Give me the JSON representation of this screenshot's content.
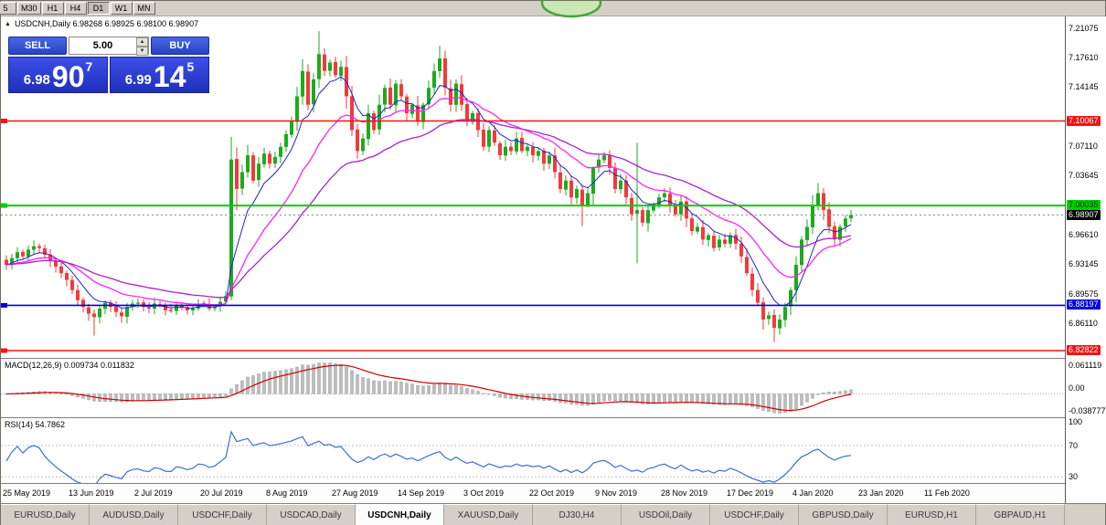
{
  "toolbar": {
    "periods": [
      "5",
      "M30",
      "H1",
      "H4",
      "D1",
      "W1",
      "MN"
    ],
    "active": "D1"
  },
  "chart": {
    "collapse_glyph": "▲",
    "symbol_line": "USDCNH,Daily  6.98268 6.98925 6.98100 6.98907",
    "trade_panel": {
      "sell_label": "SELL",
      "buy_label": "BUY",
      "volume": "5.00",
      "bid": {
        "prefix": "6.98",
        "pips": "90",
        "point": "7"
      },
      "ask": {
        "prefix": "6.99",
        "pips": "14",
        "point": "5"
      }
    },
    "macd": {
      "label": "MACD(12,26,9) 0.009734 0.011832",
      "axis": [
        "0.061119",
        "0.00",
        "-0.038777"
      ]
    },
    "rsi": {
      "label": "RSI(14) 54.7862",
      "axis": [
        "100",
        "70",
        "30"
      ],
      "levels": [
        70,
        30
      ]
    }
  },
  "tabs": [
    {
      "label": "EURUSD,Daily"
    },
    {
      "label": "AUDUSD,Daily"
    },
    {
      "label": "USDCHF,Daily"
    },
    {
      "label": "USDCAD,Daily"
    },
    {
      "label": "USDCNH,Daily",
      "active": true
    },
    {
      "label": "XAUUSD,Daily"
    },
    {
      "label": "DJ30,H4"
    },
    {
      "label": "USDOil,Daily"
    },
    {
      "label": "USDCHF,Daily"
    },
    {
      "label": "GBPUSD,Daily"
    },
    {
      "label": "EURUSD,H1"
    },
    {
      "label": "GBPAUD,H1"
    }
  ],
  "colors": {
    "up": "#1cab1c",
    "down": "#f23a3a",
    "ema_fast": "#2222cc",
    "ema_mid": "#ff22ff",
    "ema_slow": "#aa22cc",
    "macd_signal": "#cc0000",
    "macd_hist": "#bdbdbd",
    "rsi_line": "#3b6fd4",
    "level_red": "#f01414",
    "level_green": "#00cf00",
    "level_blue": "#0000dd",
    "current_bg": "#000000",
    "annotation_green": "#47a43c"
  },
  "chart_data": {
    "type": "candlestick",
    "symbol": "USDCNH",
    "timeframe": "Daily",
    "last_ohlc": {
      "open": 6.98268,
      "high": 6.98925,
      "low": 6.981,
      "close": 6.98907
    },
    "y_range": [
      6.8195,
      7.2248
    ],
    "y_ticks": [
      "7.21075",
      "7.17610",
      "7.14145",
      "7.07110",
      "7.03645",
      "6.96610",
      "6.93145",
      "6.89575",
      "6.86110"
    ],
    "x_labels": [
      "25 May 2019",
      "13 Jun 2019",
      "2 Jul 2019",
      "20 Jul 2019",
      "8 Aug 2019",
      "27 Aug 2019",
      "14 Sep 2019",
      "3 Oct 2019",
      "22 Oct 2019",
      "9 Nov 2019",
      "28 Nov 2019",
      "17 Dec 2019",
      "4 Jan 2020",
      "23 Jan 2020",
      "11 Feb 2020"
    ],
    "bars_per_label": 12,
    "closes": [
      6.93,
      6.938,
      6.945,
      6.94,
      6.948,
      6.952,
      6.95,
      6.942,
      6.935,
      6.928,
      6.92,
      6.912,
      6.9,
      6.888,
      6.88,
      6.872,
      6.868,
      6.878,
      6.885,
      6.88,
      6.874,
      6.869,
      6.88,
      6.884,
      6.885,
      6.88,
      6.878,
      6.884,
      6.882,
      6.876,
      6.875,
      6.882,
      6.88,
      6.876,
      6.878,
      6.884,
      6.883,
      6.878,
      6.88,
      6.886,
      6.893,
      7.055,
      7.02,
      7.04,
      7.06,
      7.03,
      7.05,
      7.062,
      7.05,
      7.058,
      7.07,
      7.085,
      7.1,
      7.13,
      7.16,
      7.12,
      7.15,
      7.18,
      7.16,
      7.17,
      7.155,
      7.165,
      7.13,
      7.09,
      7.065,
      7.08,
      7.11,
      7.09,
      7.12,
      7.14,
      7.12,
      7.145,
      7.13,
      7.11,
      7.12,
      7.1,
      7.12,
      7.14,
      7.16,
      7.175,
      7.14,
      7.12,
      7.145,
      7.12,
      7.1,
      7.11,
      7.09,
      7.07,
      7.09,
      7.075,
      7.06,
      7.07,
      7.065,
      7.08,
      7.065,
      7.07,
      7.06,
      7.065,
      7.05,
      7.06,
      7.04,
      7.02,
      7.03,
      7.01,
      7.02,
      7.0,
      7.015,
      7.045,
      7.055,
      7.06,
      7.045,
      7.02,
      7.03,
      7.01,
      6.99,
      6.995,
      6.98,
      6.995,
      7.0,
      7.01,
      7.015,
      7.0,
      6.99,
      7.005,
      6.985,
      6.97,
      6.975,
      6.96,
      6.965,
      6.95,
      6.96,
      6.955,
      6.965,
      6.955,
      6.94,
      6.92,
      6.9,
      6.885,
      6.865,
      6.87,
      6.855,
      6.865,
      6.88,
      6.9,
      6.93,
      6.96,
      6.975,
      7.0,
      7.015,
      6.995,
      6.975,
      6.96,
      6.975,
      6.985,
      6.98907
    ],
    "wick_overrides": {
      "16": {
        "l": 6.846
      },
      "41": {
        "h": 7.082,
        "l": 6.888
      },
      "42": {
        "l": 6.995
      },
      "57": {
        "h": 7.2075
      },
      "79": {
        "h": 7.19
      },
      "105": {
        "l": 6.976
      },
      "115": {
        "h": 7.075,
        "l": 6.932
      },
      "140": {
        "l": 6.838
      },
      "148": {
        "h": 7.027
      }
    },
    "levels": [
      {
        "price": 7.10067,
        "label": "7.10067",
        "color": "#f01414",
        "text": "#ffffff",
        "width": 1.4
      },
      {
        "price": 7.00035,
        "label": "7.00035",
        "color": "#00cf00",
        "text": "#003300",
        "width": 2
      },
      {
        "price": 6.88197,
        "label": "6.88197",
        "color": "#0000dd",
        "text": "#ffffff",
        "width": 1.6
      },
      {
        "price": 6.82822,
        "label": "6.82822",
        "color": "#f01414",
        "text": "#ffffff",
        "width": 1.4
      }
    ],
    "current": {
      "price": 6.98907,
      "label": "6.98907"
    },
    "indicators": {
      "ema_periods": [
        7,
        18,
        36
      ],
      "macd_params": [
        12,
        26,
        9
      ],
      "macd_current": [
        0.009734,
        0.011832
      ],
      "rsi_period": 14,
      "rsi_current": 54.7862
    }
  }
}
